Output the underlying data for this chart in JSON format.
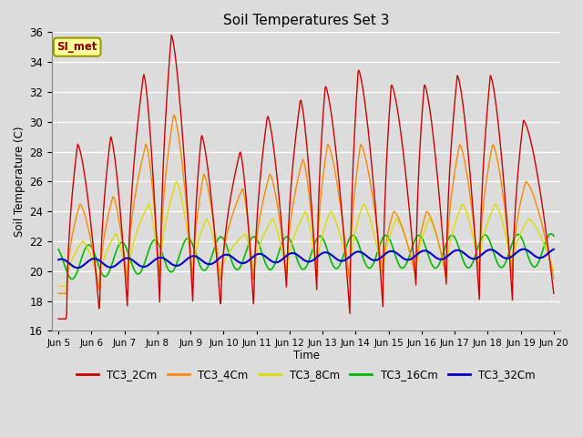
{
  "title": "Soil Temperatures Set 3",
  "xlabel": "Time",
  "ylabel": "Soil Temperature (C)",
  "ylim": [
    16,
    36
  ],
  "yticks": [
    16,
    18,
    20,
    22,
    24,
    26,
    28,
    30,
    32,
    34,
    36
  ],
  "xlim_start": 4.8,
  "xlim_end": 20.2,
  "xtick_positions": [
    5,
    6,
    7,
    8,
    9,
    10,
    11,
    12,
    13,
    14,
    15,
    16,
    17,
    18,
    19,
    20
  ],
  "xtick_labels": [
    "Jun 5",
    "Jun 6",
    "Jun 7",
    "Jun 8",
    "Jun 9",
    "Jun 10",
    "Jun 11",
    "Jun 12",
    "Jun 13",
    "Jun 14",
    "Jun 15",
    "Jun 16",
    "Jun 17",
    "Jun 18",
    "Jun 19",
    "Jun 20"
  ],
  "bg_color": "#dcdcdc",
  "plot_bg_color": "#dcdcdc",
  "grid_color": "white",
  "series": {
    "TC3_2Cm": {
      "color": "#cc0000",
      "linewidth": 1.0,
      "zorder": 5
    },
    "TC3_4Cm": {
      "color": "#ff8800",
      "linewidth": 1.0,
      "zorder": 4
    },
    "TC3_8Cm": {
      "color": "#dddd00",
      "linewidth": 1.0,
      "zorder": 3
    },
    "TC3_16Cm": {
      "color": "#00bb00",
      "linewidth": 1.2,
      "zorder": 2
    },
    "TC3_32Cm": {
      "color": "#0000cc",
      "linewidth": 1.5,
      "zorder": 6
    }
  },
  "legend_label": "SI_met",
  "legend_bg": "#ffff99",
  "legend_border": "#999900",
  "peaks_2cm": [
    28.5,
    29.0,
    33.2,
    35.8,
    29.1,
    28.0,
    30.4,
    31.5,
    32.4,
    33.5,
    32.5,
    32.5,
    33.1,
    33.1,
    30.1
  ],
  "mins_2cm": [
    16.8,
    17.0,
    17.2,
    17.3,
    17.5,
    17.3,
    17.2,
    18.5,
    18.5,
    17.0,
    17.5,
    19.0,
    19.0,
    18.0,
    18.0
  ],
  "peak_times": [
    5.58,
    6.58,
    7.58,
    8.42,
    9.33,
    10.5,
    11.33,
    12.33,
    13.08,
    14.08,
    15.08,
    16.08,
    17.08,
    18.08,
    19.08
  ],
  "min_times": [
    5.25,
    6.25,
    7.1,
    8.08,
    9.08,
    9.92,
    10.92,
    11.92,
    12.83,
    13.83,
    14.83,
    15.83,
    16.75,
    17.75,
    18.75
  ]
}
